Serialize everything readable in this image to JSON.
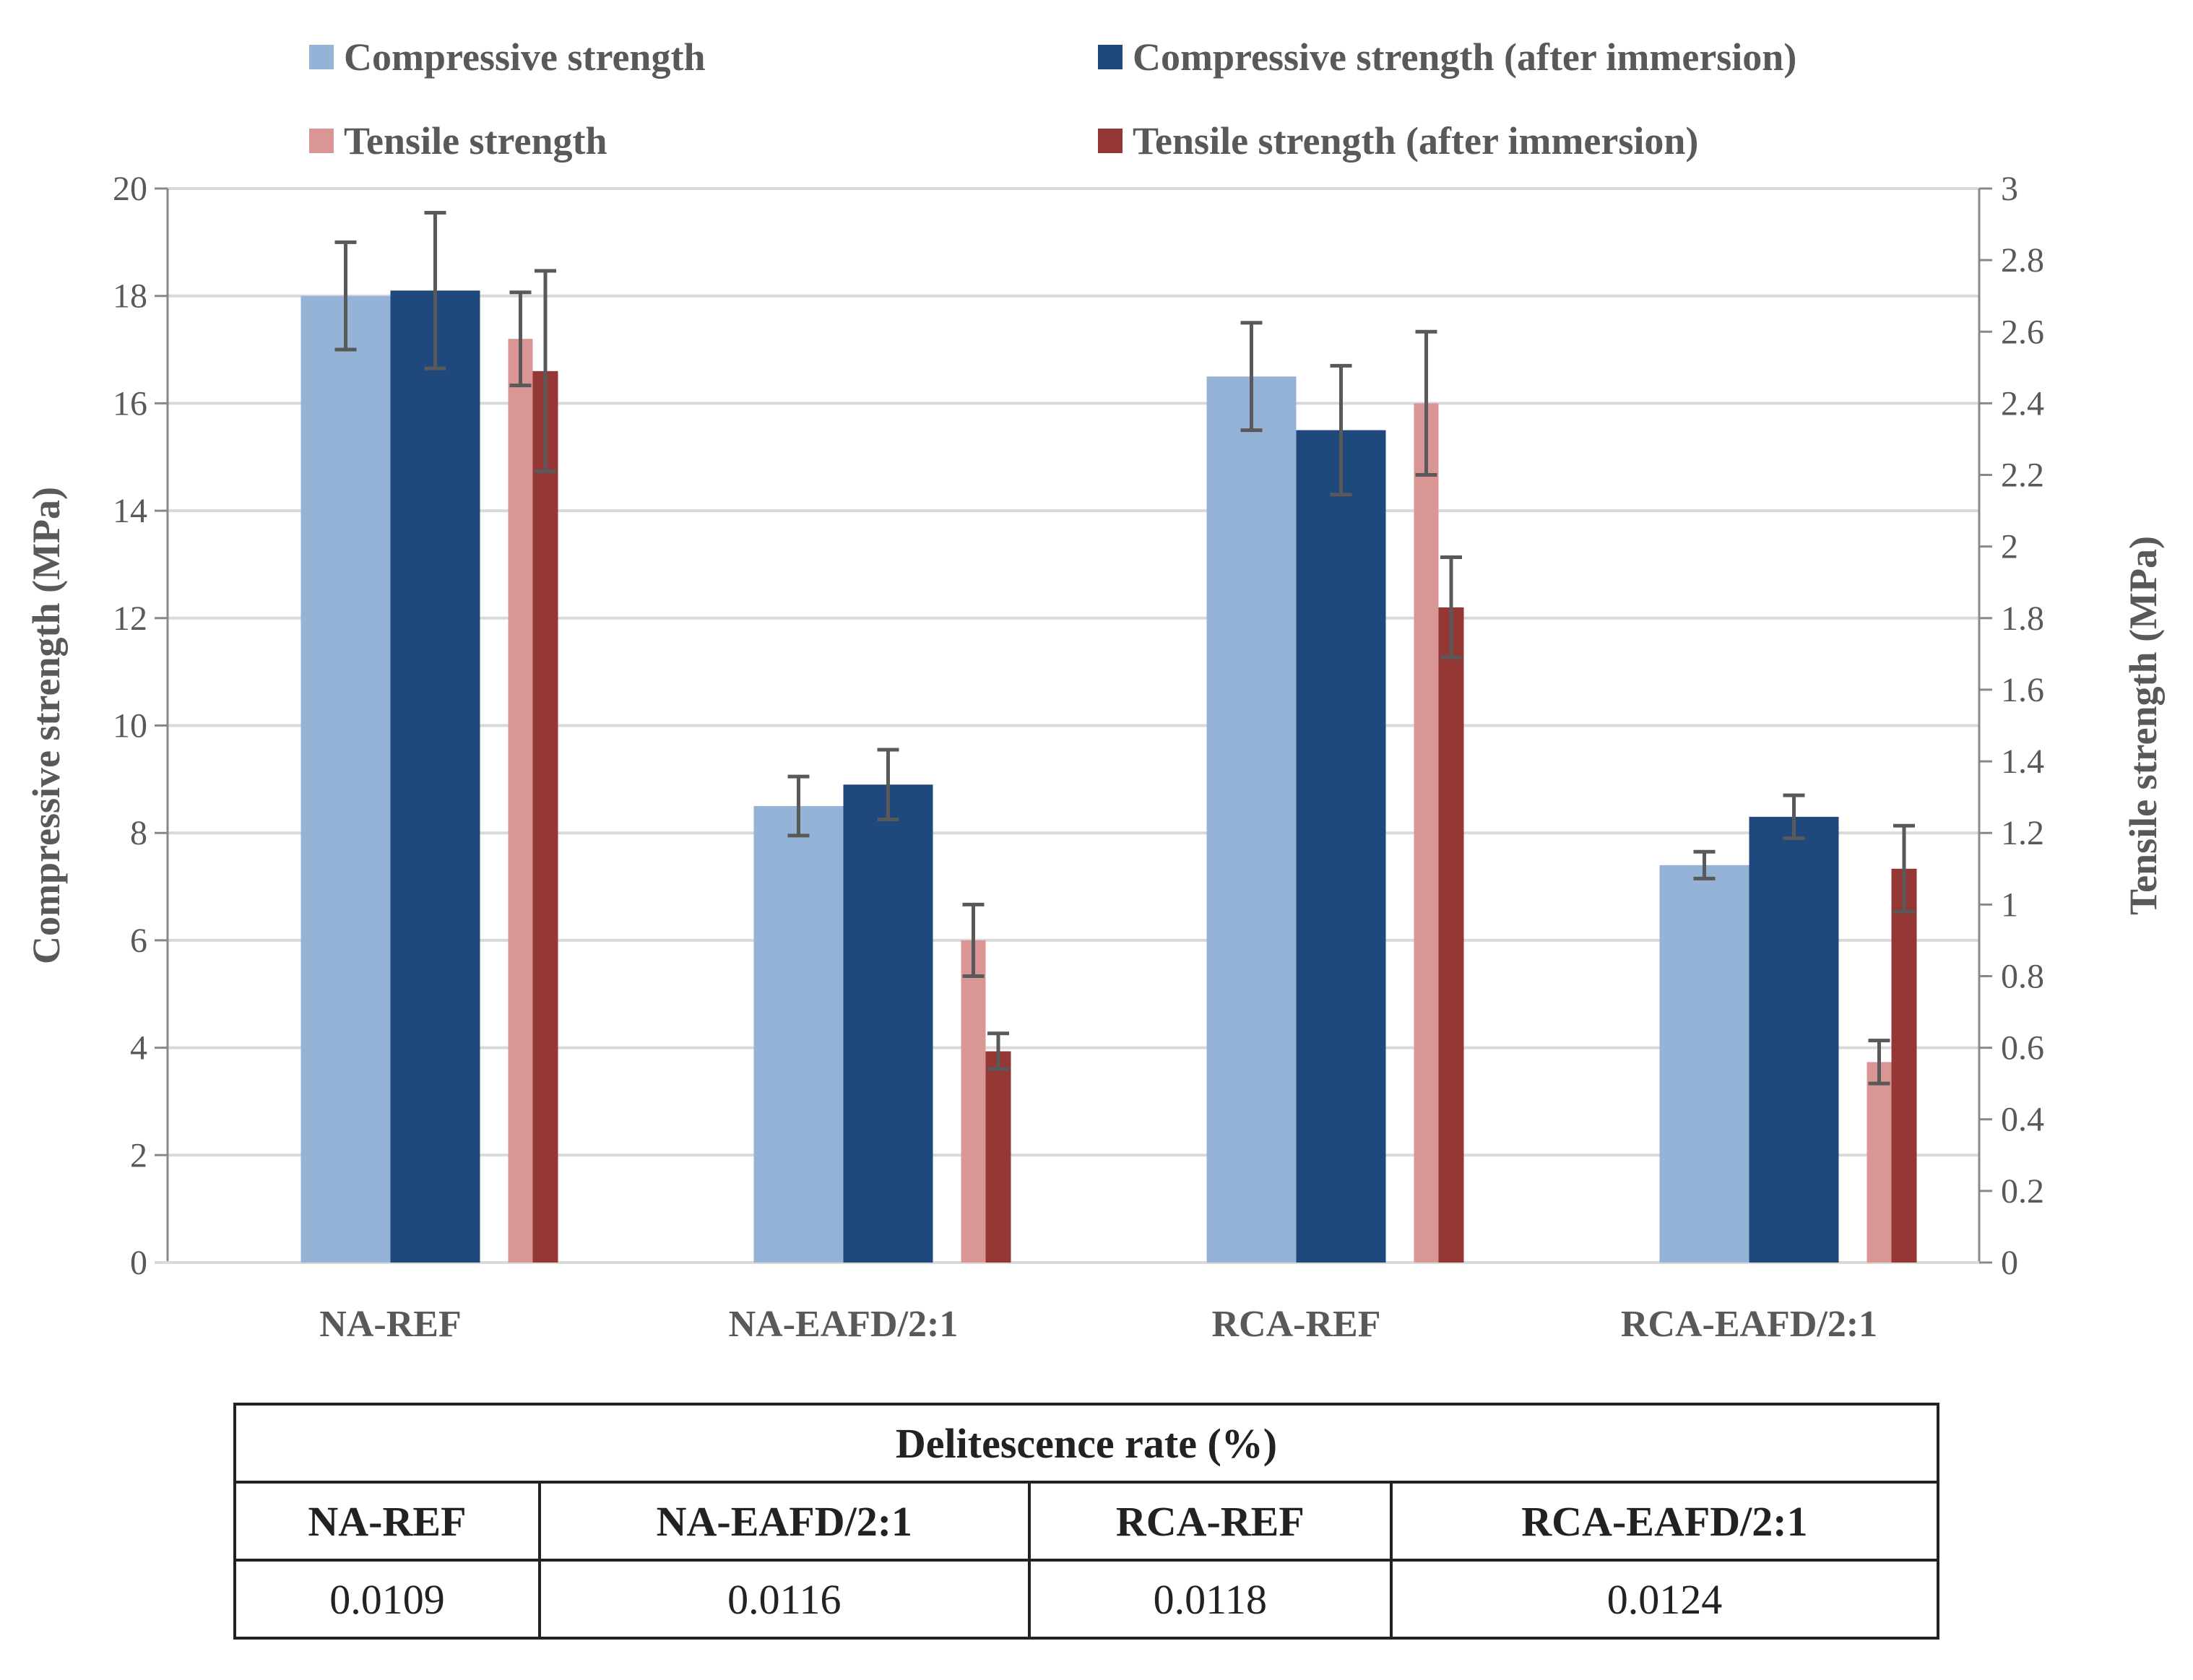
{
  "chart_data": {
    "type": "bar",
    "categories": [
      "NA-REF",
      "NA-EAFD/2:1",
      "RCA-REF",
      "RCA-EAFD/2:1"
    ],
    "ylabel": "Compressive strength (MPa)",
    "y2label": "Tensile strength (MPa)",
    "ylim": [
      0,
      20
    ],
    "y2lim": [
      0,
      3
    ],
    "yticks": [
      "0",
      "2",
      "4",
      "6",
      "8",
      "10",
      "12",
      "14",
      "16",
      "18",
      "20"
    ],
    "y2ticks": [
      "0",
      "0.2",
      "0.4",
      "0.6",
      "0.8",
      "1",
      "1.2",
      "1.4",
      "1.6",
      "1.8",
      "2",
      "2.2",
      "2.4",
      "2.6",
      "2.8",
      "3"
    ],
    "grid": true,
    "legend_position": "top",
    "series": [
      {
        "name": "Compressive strength",
        "axis": "left",
        "color": "#95B3D7",
        "values": [
          18.0,
          8.5,
          16.5,
          7.4
        ],
        "errors": [
          1.0,
          0.55,
          1.0,
          0.25
        ]
      },
      {
        "name": "Compressive strength (after immersion)",
        "axis": "left",
        "color": "#1F497D",
        "values": [
          18.1,
          8.9,
          15.5,
          8.3
        ],
        "errors": [
          1.45,
          0.65,
          1.2,
          0.4
        ]
      },
      {
        "name": "Tensile strength",
        "axis": "right",
        "color": "#D99694",
        "values": [
          2.58,
          0.9,
          2.4,
          0.56
        ],
        "errors": [
          0.13,
          0.1,
          0.2,
          0.06
        ]
      },
      {
        "name": "Tensile strength (after immersion)",
        "axis": "right",
        "color": "#953735",
        "values": [
          2.49,
          0.59,
          1.83,
          1.1
        ],
        "errors": [
          0.28,
          0.05,
          0.14,
          0.12
        ]
      }
    ]
  },
  "table": {
    "title": "Delitescence rate (%)",
    "headers": [
      "NA-REF",
      "NA-EAFD/2:1",
      "RCA-REF",
      "RCA-EAFD/2:1"
    ],
    "values": [
      "0.0109",
      "0.0116",
      "0.0118",
      "0.0124"
    ]
  }
}
